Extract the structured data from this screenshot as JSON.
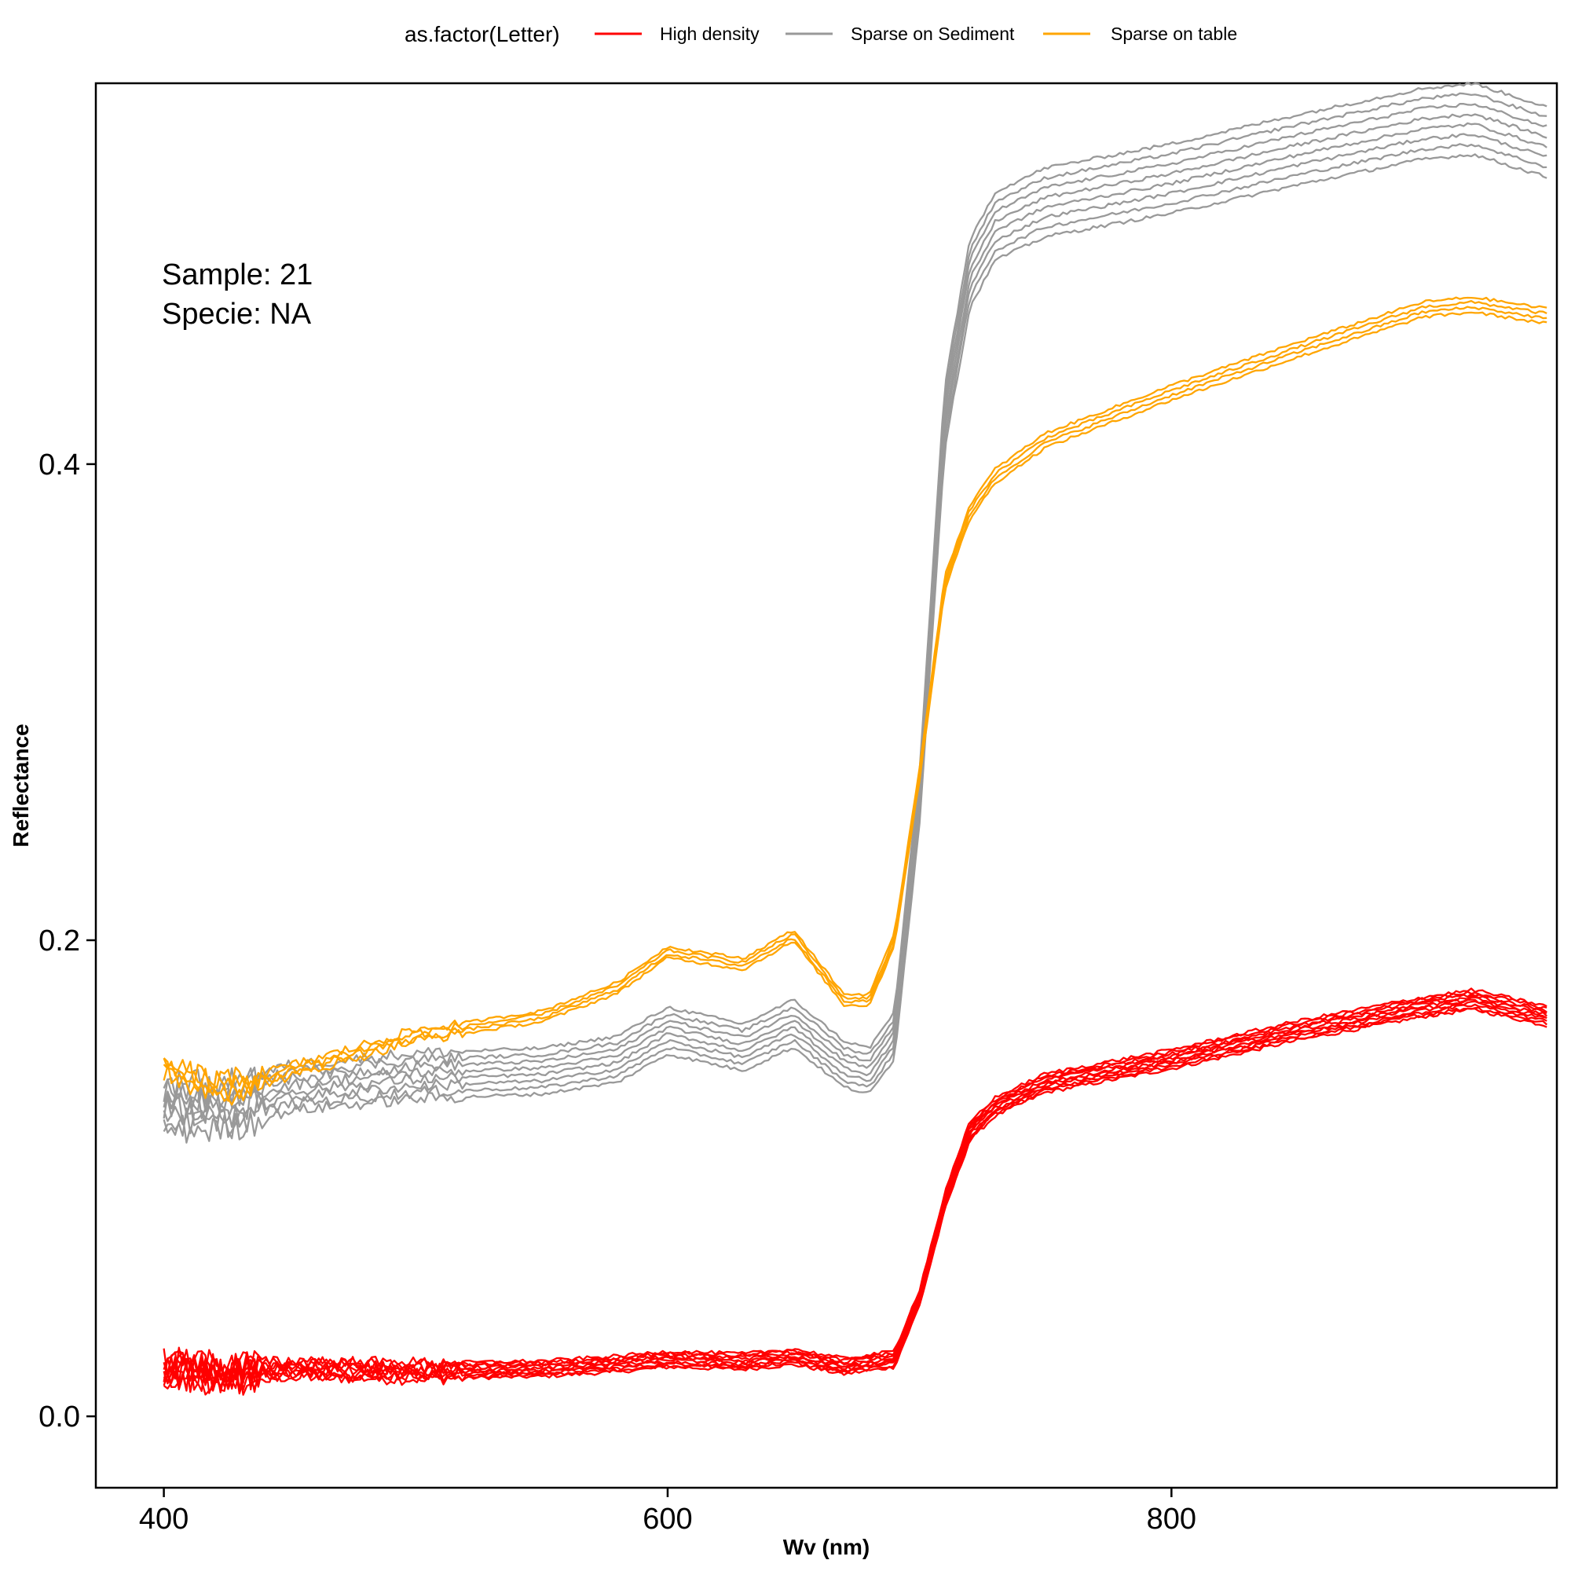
{
  "chart_data": {
    "type": "line",
    "title": "",
    "xlabel": "Wv (nm)",
    "ylabel": "Reflectance",
    "xlim": [
      373,
      953
    ],
    "ylim": [
      -0.03,
      0.56
    ],
    "x_ticks": [
      400,
      600,
      800
    ],
    "x_tick_labels": [
      "400",
      "600",
      "800"
    ],
    "y_ticks": [
      0.0,
      0.2,
      0.4
    ],
    "y_tick_labels": [
      "0.0",
      "0.2",
      "0.4"
    ],
    "grid": false,
    "legend": {
      "title": "as.factor(Letter)",
      "position": "top",
      "entries": [
        {
          "label": "High density",
          "color": "#FF0000"
        },
        {
          "label": "Sparse on Sediment",
          "color": "#999999"
        },
        {
          "label": "Sparse on table",
          "color": "#FFA500"
        }
      ]
    },
    "annotations": [
      "Sample: 21",
      "Specie: NA"
    ],
    "series": [
      {
        "name": "High density",
        "color": "#FF0000",
        "replicates": 10,
        "spread": 0.009,
        "noise": 0.009,
        "x": [
          400,
          425,
          450,
          500,
          550,
          580,
          600,
          630,
          650,
          670,
          690,
          700,
          710,
          720,
          730,
          750,
          800,
          850,
          900,
          920,
          950
        ],
        "y": [
          0.02,
          0.018,
          0.02,
          0.019,
          0.02,
          0.022,
          0.024,
          0.023,
          0.025,
          0.021,
          0.024,
          0.05,
          0.09,
          0.12,
          0.13,
          0.14,
          0.15,
          0.162,
          0.172,
          0.175,
          0.168
        ]
      },
      {
        "name": "Sparse on Sediment",
        "color": "#999999",
        "replicates": 8,
        "spread": 0.022,
        "noise": 0.008,
        "x": [
          400,
          425,
          450,
          500,
          550,
          580,
          600,
          630,
          650,
          670,
          680,
          690,
          700,
          710,
          720,
          730,
          750,
          800,
          850,
          900,
          920,
          950
        ],
        "y": [
          0.13,
          0.13,
          0.138,
          0.143,
          0.145,
          0.15,
          0.162,
          0.155,
          0.165,
          0.148,
          0.145,
          0.16,
          0.26,
          0.42,
          0.48,
          0.5,
          0.51,
          0.52,
          0.532,
          0.543,
          0.545,
          0.535
        ]
      },
      {
        "name": "Sparse on table",
        "color": "#FFA500",
        "replicates": 4,
        "spread": 0.005,
        "noise": 0.007,
        "x": [
          400,
          425,
          450,
          500,
          550,
          580,
          600,
          630,
          650,
          670,
          680,
          690,
          700,
          710,
          720,
          730,
          750,
          800,
          850,
          900,
          920,
          950
        ],
        "y": [
          0.145,
          0.138,
          0.145,
          0.16,
          0.168,
          0.18,
          0.195,
          0.19,
          0.202,
          0.175,
          0.175,
          0.2,
          0.27,
          0.35,
          0.38,
          0.395,
          0.41,
          0.43,
          0.448,
          0.465,
          0.467,
          0.462
        ]
      }
    ]
  }
}
